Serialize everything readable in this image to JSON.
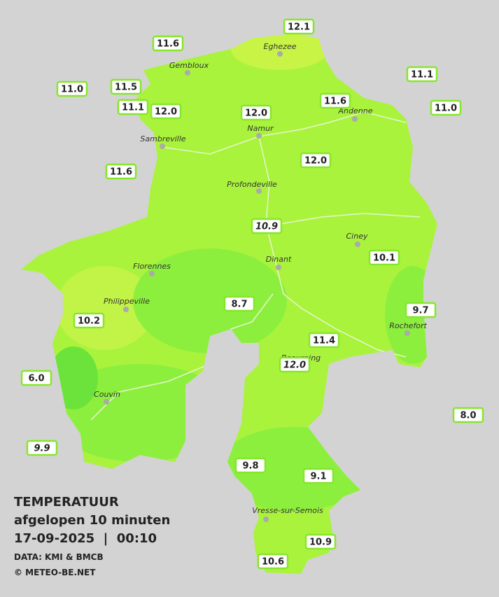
{
  "stations": [
    "12.1",
    "11.6",
    "11.1",
    "11.0",
    "11.5",
    "11.1",
    "12.0",
    "12.0",
    "11.6",
    "11.0",
    "12.0",
    "11.6",
    "10.9",
    "10.1",
    "8.7",
    "9.7",
    "10.2",
    "11.4",
    "12.0",
    "6.0",
    "8.0",
    "9.9",
    "9.8",
    "9.1",
    "10.9",
    "10.6"
  ],
  "cities": [
    "Eghezee",
    "Gembloux",
    "Andenne",
    "Namur",
    "Sambreville",
    "Profondeville",
    "Ciney",
    "Dinant",
    "Florennes",
    "Philippeville",
    "Rochefort",
    "Beauraing",
    "Couvin",
    "Vresse-sur-Semois"
  ],
  "legend": {
    "title": "TEMPERATUUR",
    "subtitle": "afgelopen 10 minuten",
    "datetime": "17-09-2025  |  00:10",
    "source": "DATA: KMI & BMCB",
    "copyright": "© METEO-BE.NET"
  }
}
